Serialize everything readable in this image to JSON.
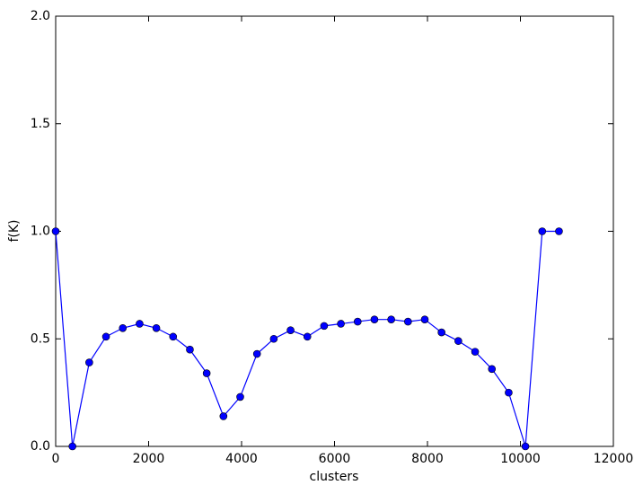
{
  "chart_data": {
    "type": "line",
    "xlabel": "clusters",
    "ylabel": "f(K)",
    "x": [
      0,
      361,
      722,
      1083,
      1444,
      1805,
      2166,
      2527,
      2888,
      3249,
      3610,
      3971,
      4332,
      4693,
      5054,
      5415,
      5776,
      6137,
      6498,
      6859,
      7220,
      7581,
      7942,
      8303,
      8664,
      9025,
      9386,
      9747,
      10108,
      10469,
      10830
    ],
    "series": [
      {
        "name": "f(K)",
        "color": "#0000ff",
        "values": [
          1.0,
          0.0,
          0.39,
          0.51,
          0.55,
          0.57,
          0.55,
          0.51,
          0.45,
          0.34,
          0.14,
          0.23,
          0.43,
          0.5,
          0.54,
          0.51,
          0.56,
          0.57,
          0.58,
          0.59,
          0.59,
          0.58,
          0.59,
          0.53,
          0.49,
          0.44,
          0.36,
          0.25,
          0.0,
          1.0,
          1.0
        ]
      }
    ],
    "xlim": [
      0,
      12000
    ],
    "xticks": [
      0,
      2000,
      4000,
      6000,
      8000,
      10000,
      12000
    ],
    "ylim": [
      0,
      2
    ],
    "yticks": [
      {
        "value": 0,
        "label": "0.0"
      },
      {
        "value": 0.5,
        "label": "0.5"
      },
      {
        "value": 1,
        "label": "1.0"
      },
      {
        "value": 1.5,
        "label": "1.5"
      },
      {
        "value": 2,
        "label": "2.0"
      }
    ],
    "grid": false
  }
}
